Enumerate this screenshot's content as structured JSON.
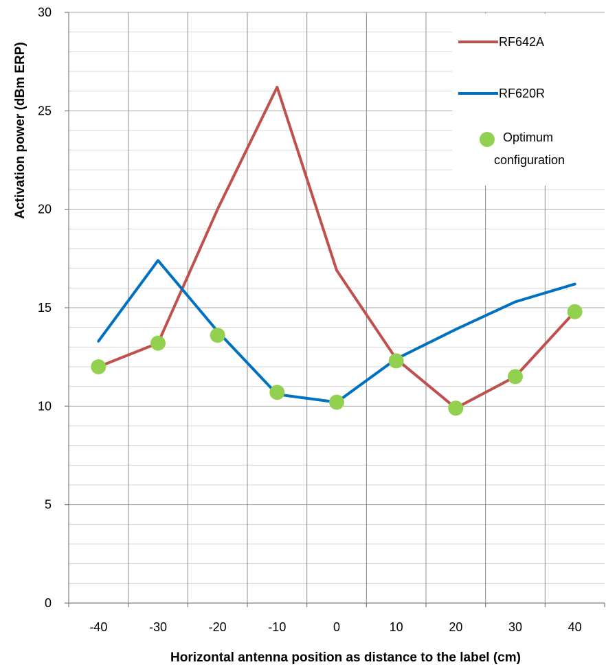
{
  "chart_data": {
    "type": "line",
    "title": "",
    "xlabel": "Horizontal antenna position as distance to the label (cm)",
    "ylabel": "Activation power (dBm ERP)",
    "x_ticks": [
      "-40",
      "-30",
      "-20",
      "-10",
      "0",
      "10",
      "20",
      "30",
      "40"
    ],
    "y_ticks": [
      "0",
      "5",
      "10",
      "15",
      "20",
      "25",
      "30"
    ],
    "xlim": [
      -45,
      45
    ],
    "ylim": [
      0,
      30
    ],
    "y_minor_step": 1,
    "grid": true,
    "legend_position": "top-right",
    "series": [
      {
        "name": "RF642A",
        "type": "line",
        "color": "#c0504d",
        "x": [
          -40,
          -30,
          -20,
          -10,
          0,
          10,
          20,
          30,
          40
        ],
        "y": [
          12.0,
          13.2,
          20.0,
          26.2,
          16.9,
          12.4,
          9.9,
          11.5,
          14.8
        ]
      },
      {
        "name": "RF620R",
        "type": "line",
        "color": "#0070c0",
        "x": [
          -40,
          -30,
          -20,
          -10,
          0,
          10,
          20,
          30,
          40
        ],
        "y": [
          13.3,
          17.4,
          13.8,
          10.6,
          10.2,
          12.4,
          13.9,
          15.3,
          16.2
        ]
      },
      {
        "name": "Optimum configuration",
        "name_lines": [
          "Optimum",
          "configuration"
        ],
        "type": "scatter",
        "color": "#92d050",
        "x": [
          -40,
          -30,
          -20,
          -10,
          0,
          10,
          20,
          30,
          40
        ],
        "y": [
          12.0,
          13.2,
          13.6,
          10.7,
          10.2,
          12.3,
          9.9,
          11.5,
          14.8
        ]
      }
    ]
  }
}
